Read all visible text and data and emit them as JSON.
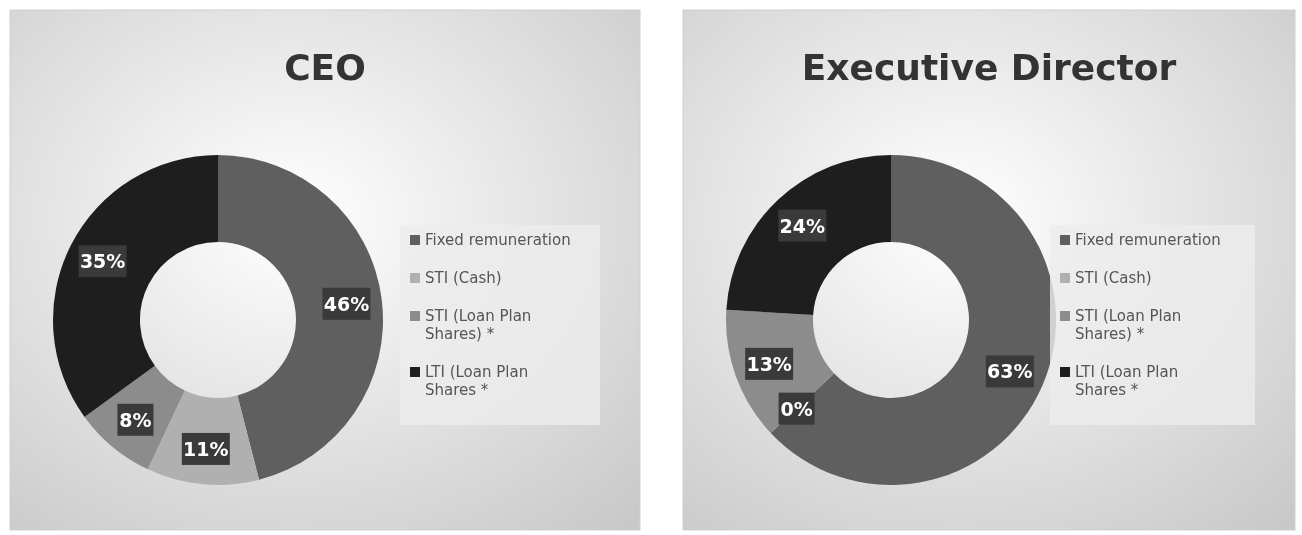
{
  "chart_data": [
    {
      "type": "donut",
      "title": "CEO",
      "categories": [
        "Fixed remuneration",
        "STI (Cash)",
        "STI (Loan Plan Shares) *",
        "LTI (Loan Plan Shares *"
      ],
      "values": [
        46,
        11,
        8,
        35
      ],
      "colors": [
        "#5f5f5f",
        "#b0b0b0",
        "#8c8c8c",
        "#1e1e1e"
      ],
      "value_labels": [
        "46%",
        "11%",
        "8%",
        "35%"
      ],
      "legend": "right"
    },
    {
      "type": "donut",
      "title": "Executive Director",
      "categories": [
        "Fixed remuneration",
        "STI (Cash)",
        "STI (Loan Plan Shares) *",
        "LTI (Loan Plan Shares *"
      ],
      "values": [
        63,
        0,
        13,
        24
      ],
      "colors": [
        "#5f5f5f",
        "#b0b0b0",
        "#8c8c8c",
        "#1e1e1e"
      ],
      "value_labels": [
        "63%",
        "0%",
        "13%",
        "24%"
      ],
      "legend": "right"
    }
  ]
}
